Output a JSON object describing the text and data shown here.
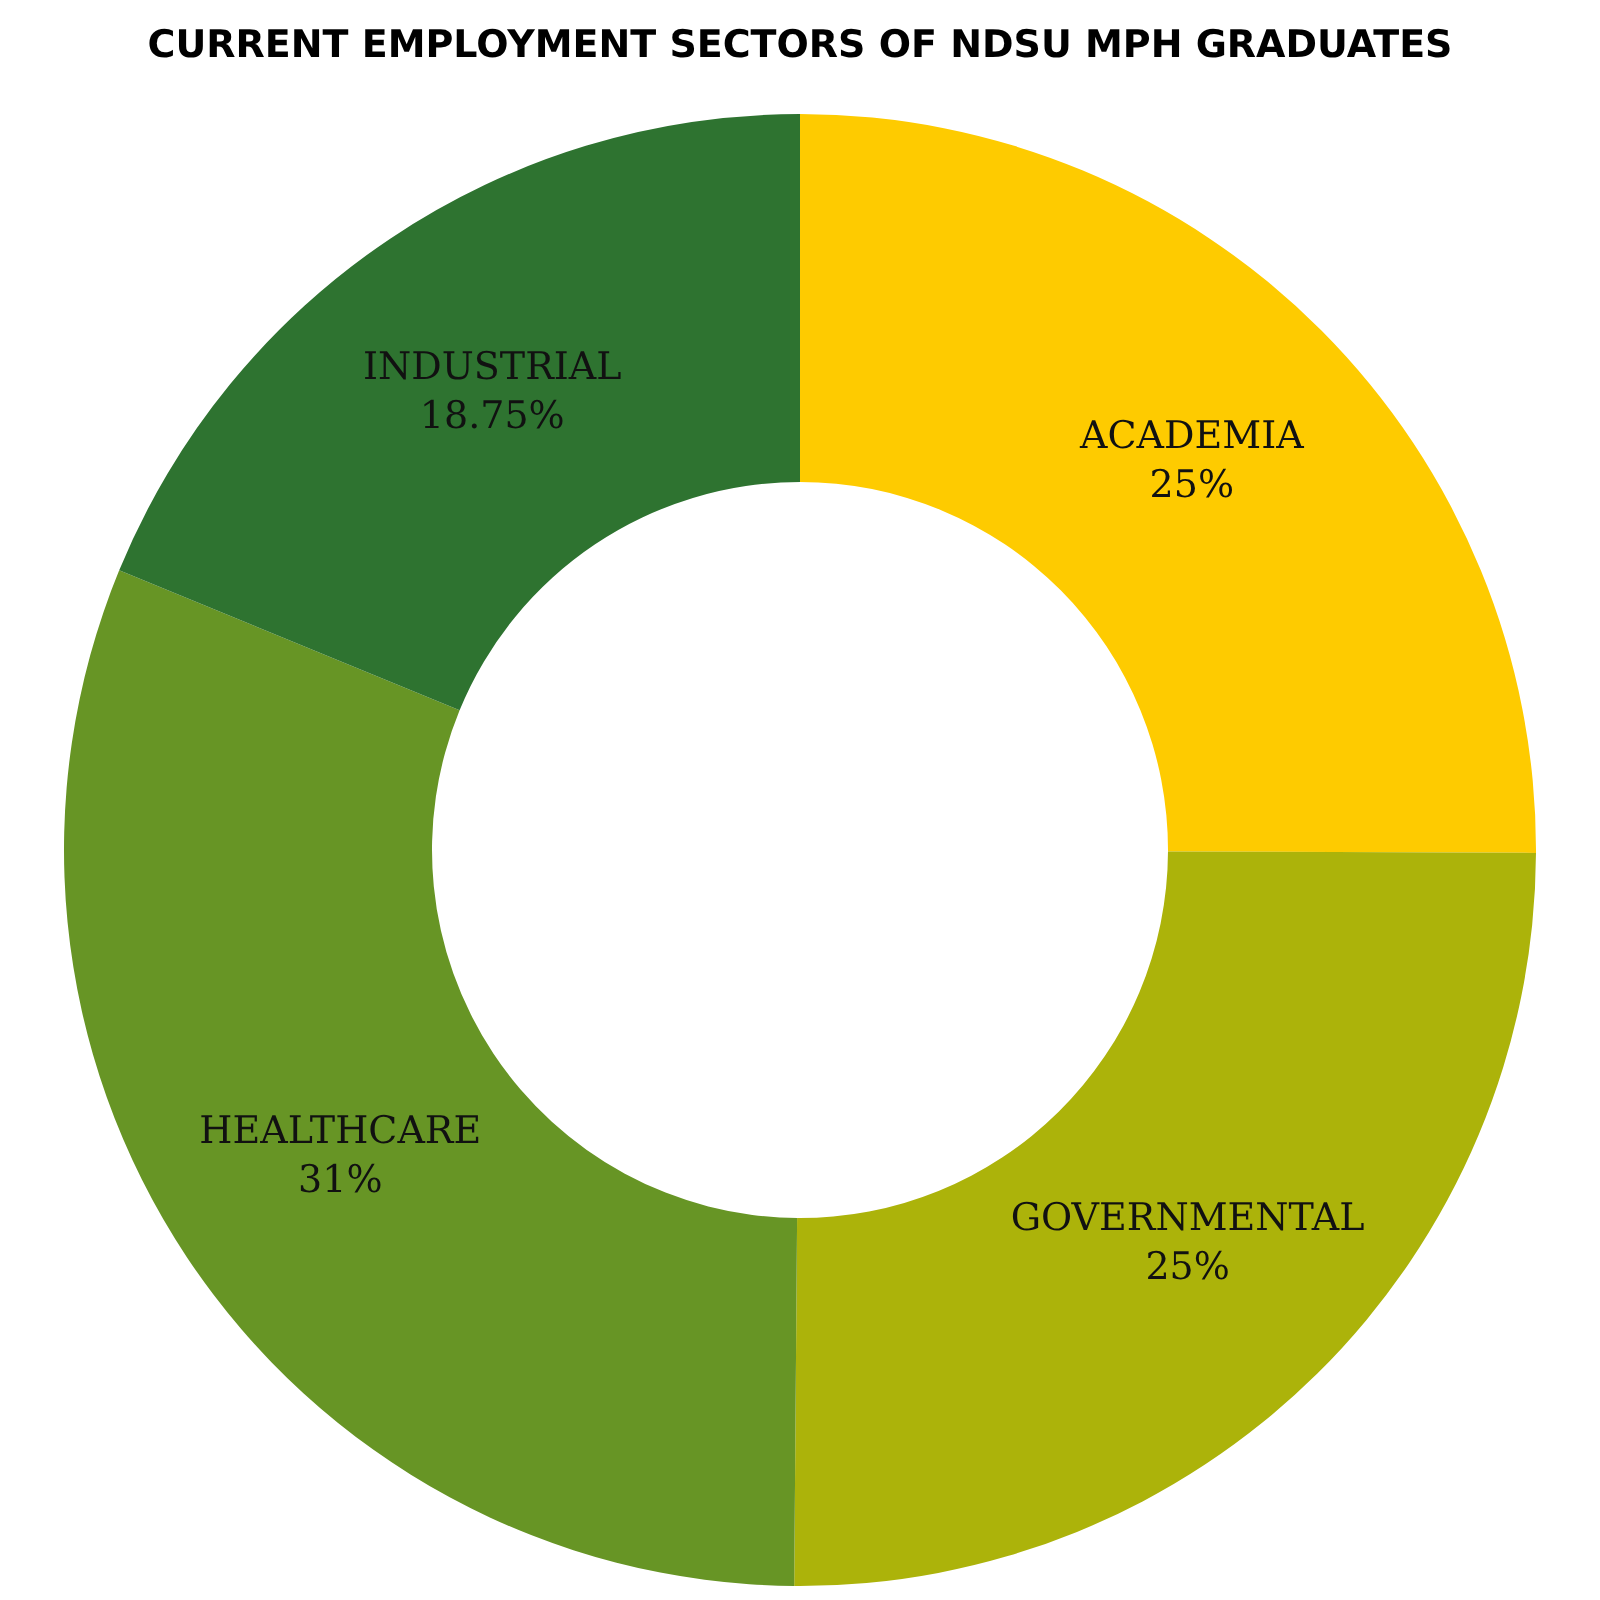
{
  "chart_data": {
    "type": "donut",
    "title": "CURRENT EMPLOYMENT SECTORS OF NDSU MPH GRADUATES",
    "categories": [
      "ACADEMIA",
      "GOVERNMENTAL",
      "HEALTHCARE",
      "INDUSTRIAL"
    ],
    "values": [
      25,
      25,
      31,
      18.75
    ],
    "value_labels": [
      "25%",
      "25%",
      "31%",
      "18.75%"
    ],
    "colors": [
      "#fecb00",
      "#acb30a",
      "#679525",
      "#2e7330"
    ]
  }
}
